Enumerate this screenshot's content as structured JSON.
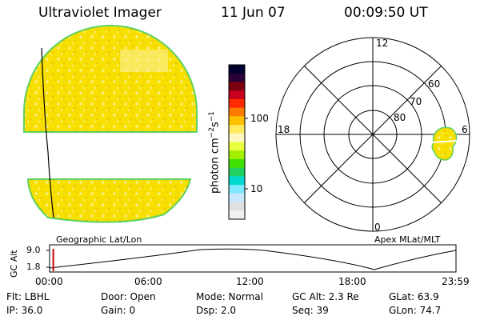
{
  "header": {
    "instrument": "Ultraviolet Imager",
    "date": "11 Jun 07",
    "time": "00:09:50 UT"
  },
  "geo_panel": {
    "label": "Geographic Lat/Lon"
  },
  "apex_panel": {
    "label": "Apex MLat/MLT",
    "mlt_labels": [
      "12",
      "18",
      "6",
      "0"
    ],
    "lat_labels": [
      "80",
      "70",
      "60"
    ]
  },
  "colorbar": {
    "unit_label": "photon cm",
    "unit_exp1": "−2",
    "unit_s": "s",
    "unit_exp2": "−1",
    "tick_labels": [
      "100",
      "10"
    ],
    "colors": [
      "#000030",
      "#2a003a",
      "#7a0010",
      "#c8001e",
      "#ff2a00",
      "#ff7a00",
      "#ffc000",
      "#ffea60",
      "#fff6c0",
      "#e8ff40",
      "#a0f000",
      "#40e000",
      "#20d060",
      "#00d8d0",
      "#80e8ff",
      "#c8e8ff",
      "#e0e0e0",
      "#f0f0f0"
    ]
  },
  "timeline": {
    "ylabel": "GC Alt",
    "y_ticks": [
      "9.0",
      "1.8"
    ],
    "x_ticks": [
      "00:00",
      "06:00",
      "12:00",
      "18:00",
      "23:59"
    ],
    "current_time_fraction": 0.007
  },
  "status": {
    "flt": "Flt: LBHL",
    "ip": "IP: 36.0",
    "door": "Door: Open",
    "gain": "Gain:  0",
    "mode": "Mode: Normal",
    "dsp": "Dsp:     2.0",
    "gcalt": "GC Alt: 2.3 Re",
    "seq": "Seq: 39",
    "glat": "GLat:   63.9",
    "glon": "GLon:  74.7"
  },
  "image_colors": {
    "fill": "#f7df00",
    "fill_light": "#faf09a",
    "fill_dark": "#f0c800",
    "rim": "#60d060"
  }
}
